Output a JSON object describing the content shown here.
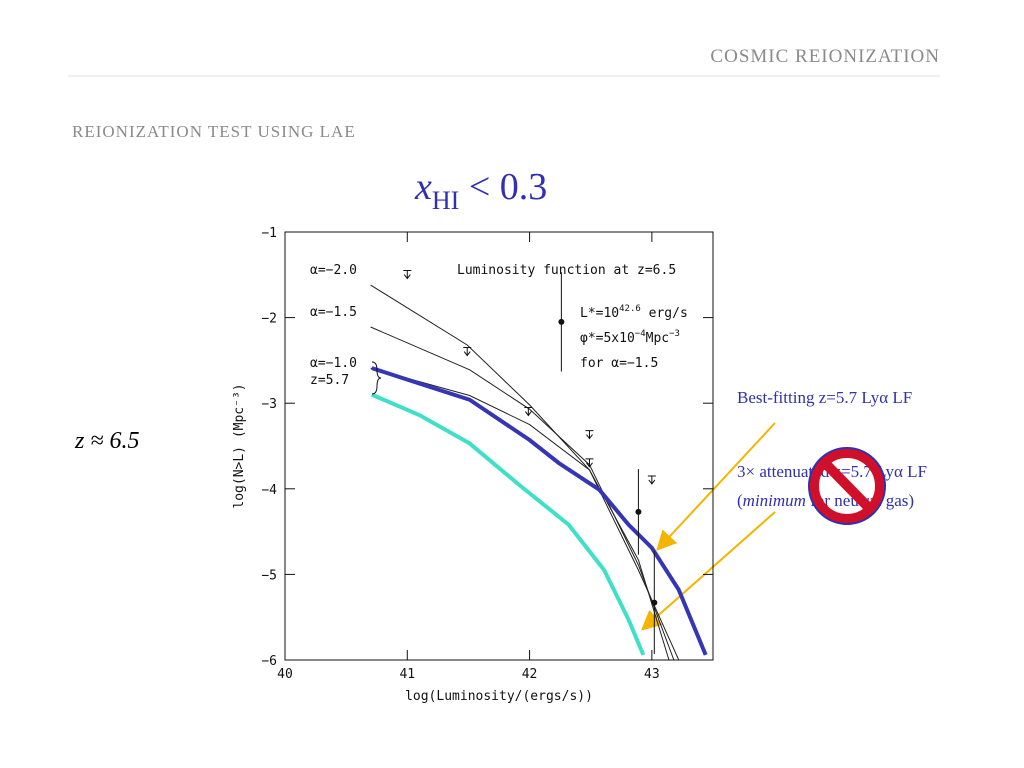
{
  "header": "COSMIC REIONIZATION",
  "subtitle": "REIONIZATION TEST USING LAE",
  "headline": {
    "var": "x",
    "sub": "HI",
    "rest": " < 0.3"
  },
  "side_label": "z ≈ 6.5",
  "notes": {
    "best_fit": "Best-fitting z=5.7 Lyα LF",
    "attenuated": "3× attenuated z=5.7 Lyα LF",
    "open": "(",
    "minimum": "minimum",
    "close": " for neutral gas)"
  },
  "chart_data": {
    "type": "line",
    "xlabel": "log(Luminosity/(ergs/s))",
    "ylabel": "log(N>L) (Mpc⁻³)",
    "xlim": [
      40,
      43.5
    ],
    "ylim": [
      -6,
      -1
    ],
    "xticks": [
      40,
      41,
      42,
      43
    ],
    "yticks": [
      {
        "value": -1,
        "label": "−1"
      },
      {
        "value": -2,
        "label": "−2"
      },
      {
        "value": -3,
        "label": "−3"
      },
      {
        "value": -4,
        "label": "−4"
      },
      {
        "value": -5,
        "label": "−5"
      },
      {
        "value": -6,
        "label": "−6"
      }
    ],
    "series": [
      {
        "color": "#222222",
        "width": 1,
        "x": [
          40.7,
          41.49,
          42.0,
          42.49,
          42.89,
          43.22
        ],
        "values": [
          -1.62,
          -2.32,
          -3.02,
          -3.78,
          -4.95,
          -6
        ]
      },
      {
        "color": "#222222",
        "width": 1,
        "x": [
          40.7,
          41.51,
          42.0,
          42.49,
          42.89,
          43.18
        ],
        "values": [
          -2.11,
          -2.61,
          -3.07,
          -3.72,
          -4.89,
          -6
        ]
      },
      {
        "color": "#222222",
        "width": 1,
        "x": [
          40.7,
          41.51,
          42.0,
          42.49,
          42.89,
          43.14
        ],
        "values": [
          -2.59,
          -2.91,
          -3.25,
          -3.78,
          -4.83,
          -6
        ]
      },
      {
        "color": "#3535b5",
        "width": 4,
        "x": [
          40.71,
          41.51,
          42.0,
          42.24,
          42.57,
          42.81,
          43.0,
          43.22,
          43.44
        ],
        "values": [
          -2.59,
          -2.96,
          -3.43,
          -3.7,
          -4.01,
          -4.42,
          -4.69,
          -5.18,
          -5.94
        ]
      },
      {
        "color": "#40e0c8",
        "width": 4,
        "x": [
          40.71,
          41.1,
          41.51,
          41.92,
          42.32,
          42.61,
          42.81,
          42.93
        ],
        "values": [
          -2.9,
          -3.14,
          -3.47,
          -3.96,
          -4.42,
          -4.95,
          -5.53,
          -5.94
        ]
      }
    ],
    "points": {
      "x": [
        42.89,
        43.02
      ],
      "values": [
        -4.27,
        -5.33
      ],
      "err": [
        0.5,
        0.6
      ]
    },
    "upper_limits": {
      "x": [
        41.0,
        41.49,
        41.99,
        42.49,
        42.49,
        43.0
      ],
      "values": [
        -1.45,
        -2.35,
        -3.05,
        -3.32,
        -3.65,
        -3.85
      ]
    },
    "example_point": {
      "x": 42.26,
      "value": -2.05,
      "err": 0.58
    },
    "annotations": {
      "a20": "α=−2.0",
      "a15": "α=−1.5",
      "a10": "α=−1.0",
      "z57": "z=5.7",
      "title": "Luminosity function at z=6.5",
      "lstar": "L*=10",
      "lstar_exp": "42.6",
      "lstar_unit": " erg/s",
      "phi": "φ*=5x10",
      "phi_exp": "−4",
      "phi_unit": "Mpc",
      "phi_unit_exp": "−3",
      "alpha": "for α=−1.5"
    }
  }
}
